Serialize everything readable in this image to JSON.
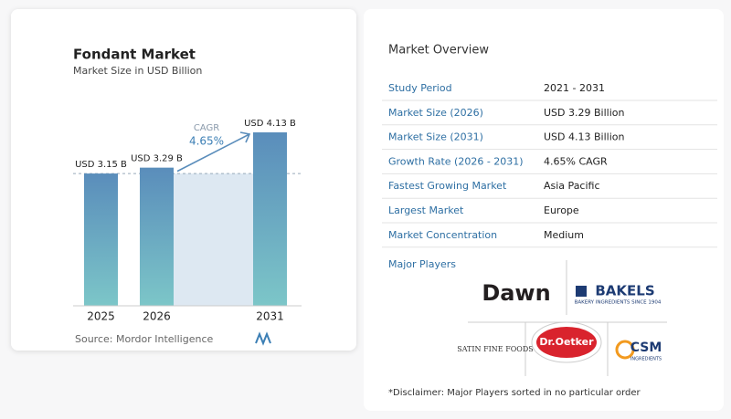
{
  "chart_data": {
    "type": "bar",
    "title": "Fondant Market",
    "subtitle": "Market Size in USD Billion",
    "categories": [
      "2025",
      "2026",
      "2031"
    ],
    "values": [
      3.15,
      3.29,
      4.13
    ],
    "value_labels": [
      "USD 3.15 B",
      "USD 3.29 B",
      "USD 4.13 B"
    ],
    "annotation": {
      "label": "CAGR",
      "value": "4.65%"
    }
  },
  "source": "Source:  Mordor Intelligence",
  "overview": {
    "title": "Market Overview",
    "rows": [
      [
        "Study Period",
        "2021 - 2031"
      ],
      [
        "Market Size (2026)",
        "USD 3.29 Billion"
      ],
      [
        "Market Size (2031)",
        "USD 4.13 Billion"
      ],
      [
        "Growth Rate (2026 - 2031)",
        "4.65% CAGR"
      ],
      [
        "Fastest Growing Market",
        "Asia Pacific"
      ],
      [
        "Largest Market",
        "Europe"
      ],
      [
        "Market Concentration",
        "Medium"
      ]
    ]
  },
  "players": {
    "title": "Major Players",
    "names": [
      "Dawn",
      "BAKELS",
      "BAKERY INGREDIENTS SINCE 1904",
      "SATIN FINE FOODS",
      "Dr.Oetker",
      "CSM",
      "INGREDIENTS"
    ]
  },
  "disclaimer": "*Disclaimer: Major Players sorted in no particular order"
}
